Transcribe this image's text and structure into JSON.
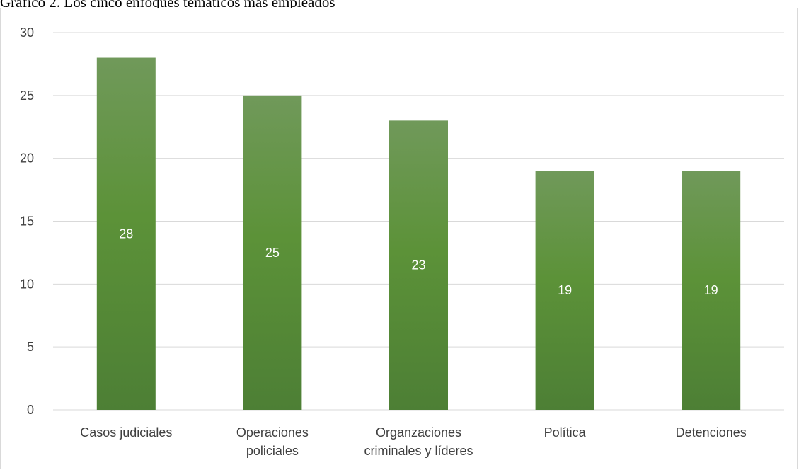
{
  "caption": "Gráfico 2. Los cinco enfoques temáticos más empleados",
  "colors": {
    "bar_top": "#70995a",
    "bar_mid": "#5c9238",
    "bar_bottom": "#4d7f35",
    "gridline": "#d9d9d9",
    "axis_text": "#404040",
    "data_label": "#ffffff"
  },
  "chart_data": {
    "type": "bar",
    "title": "",
    "xlabel": "",
    "ylabel": "",
    "ylim": [
      0,
      30
    ],
    "yticks": [
      0,
      5,
      10,
      15,
      20,
      25,
      30
    ],
    "grid": true,
    "categories": [
      [
        "Casos judiciales"
      ],
      [
        "Operaciones",
        "policiales"
      ],
      [
        "Organzaciones",
        "criminales y líderes"
      ],
      [
        "Política"
      ],
      [
        "Detenciones"
      ]
    ],
    "values": [
      28,
      25,
      23,
      19,
      19
    ],
    "data_labels": true
  }
}
